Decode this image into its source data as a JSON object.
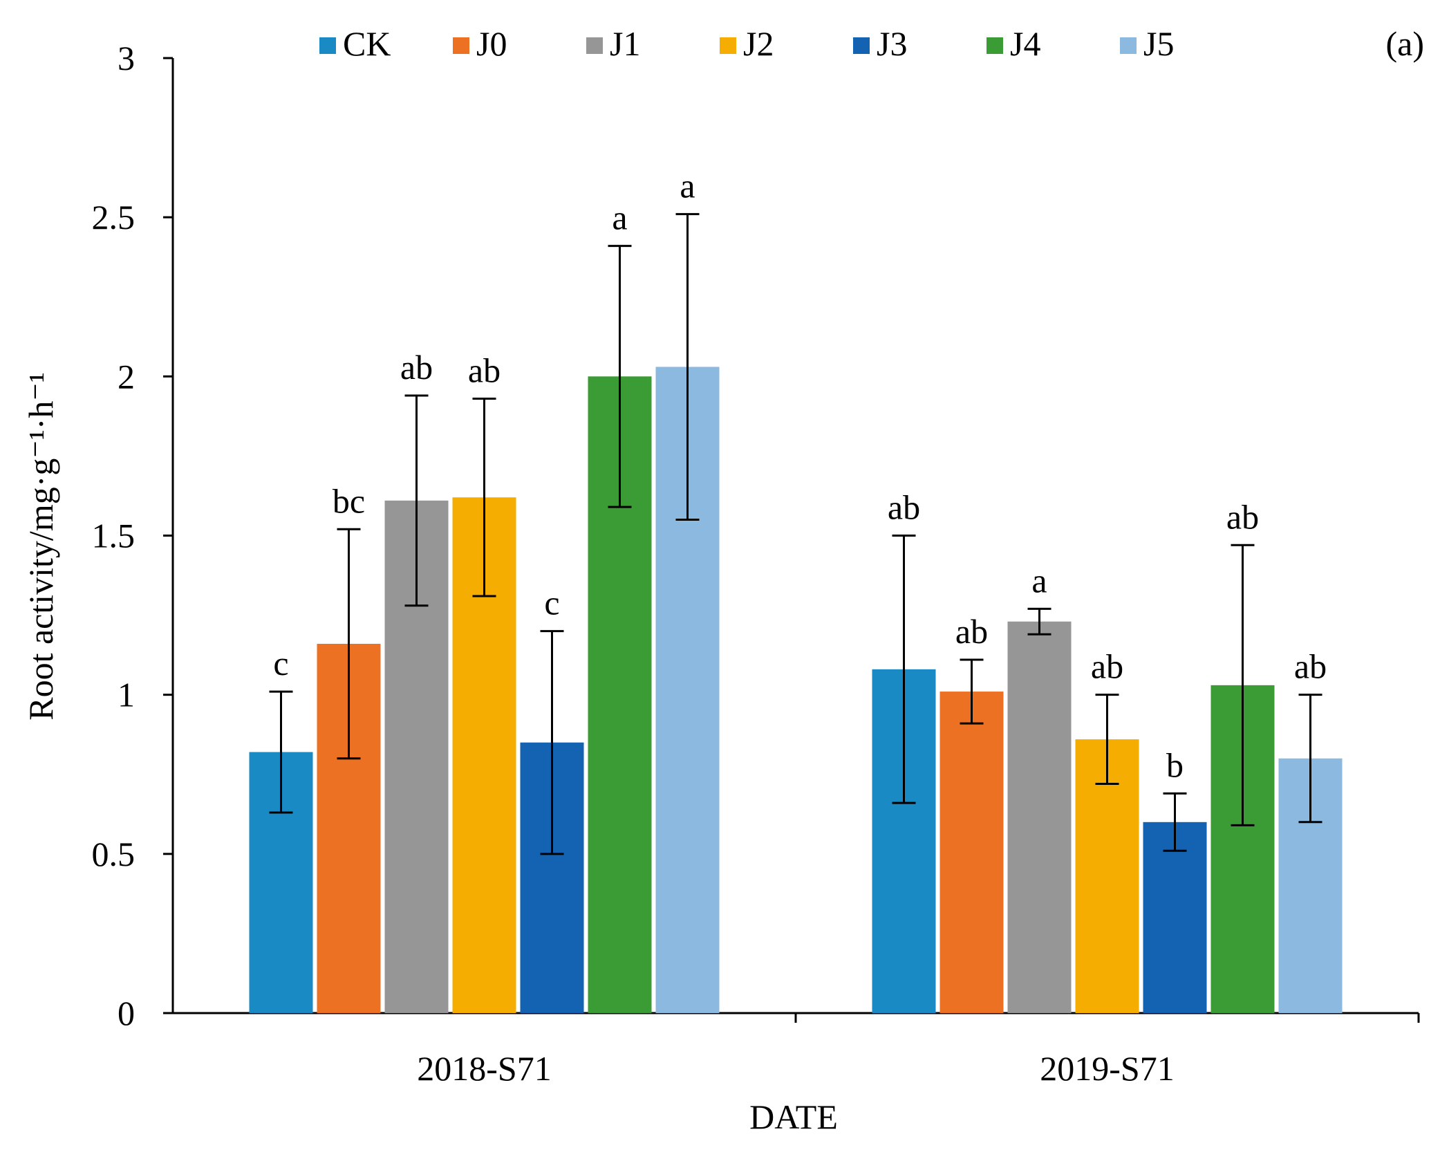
{
  "chart_data": {
    "type": "bar",
    "panel_label": "(a)",
    "title": "",
    "xlabel": "DATE",
    "ylabel": "Root activity/mg·g⁻¹·h⁻¹",
    "ylim": [
      0,
      3
    ],
    "yticks": [
      "0",
      "0.5",
      "1",
      "1.5",
      "2",
      "2.5",
      "3"
    ],
    "ytick_values": [
      0,
      0.5,
      1,
      1.5,
      2,
      2.5,
      3
    ],
    "grid": false,
    "legend_position": "top",
    "categories": [
      "2018-S71",
      "2019-S71"
    ],
    "series": [
      {
        "name": "CK",
        "color": "#1a8ac4",
        "values": [
          0.82,
          1.08
        ],
        "error": [
          0.19,
          0.42
        ],
        "letters": [
          "c",
          "ab"
        ]
      },
      {
        "name": "J0",
        "color": "#ec7123",
        "values": [
          1.16,
          1.01
        ],
        "error": [
          0.36,
          0.1
        ],
        "letters": [
          "bc",
          "ab"
        ]
      },
      {
        "name": "J1",
        "color": "#969696",
        "values": [
          1.61,
          1.23
        ],
        "error": [
          0.33,
          0.04
        ],
        "letters": [
          "ab",
          "a"
        ]
      },
      {
        "name": "J2",
        "color": "#f4ad00",
        "values": [
          1.62,
          0.86
        ],
        "error": [
          0.31,
          0.14
        ],
        "letters": [
          "ab",
          "ab"
        ]
      },
      {
        "name": "J3",
        "color": "#1363b2",
        "values": [
          0.85,
          0.6
        ],
        "error": [
          0.35,
          0.09
        ],
        "letters": [
          "c",
          "b"
        ]
      },
      {
        "name": "J4",
        "color": "#3b9b35",
        "values": [
          2.0,
          1.03
        ],
        "error": [
          0.41,
          0.44
        ],
        "letters": [
          "a",
          "ab"
        ]
      },
      {
        "name": "J5",
        "color": "#8bb9e0",
        "values": [
          2.03,
          0.8
        ],
        "error": [
          0.48,
          0.2
        ],
        "letters": [
          "a",
          "ab"
        ]
      }
    ]
  }
}
